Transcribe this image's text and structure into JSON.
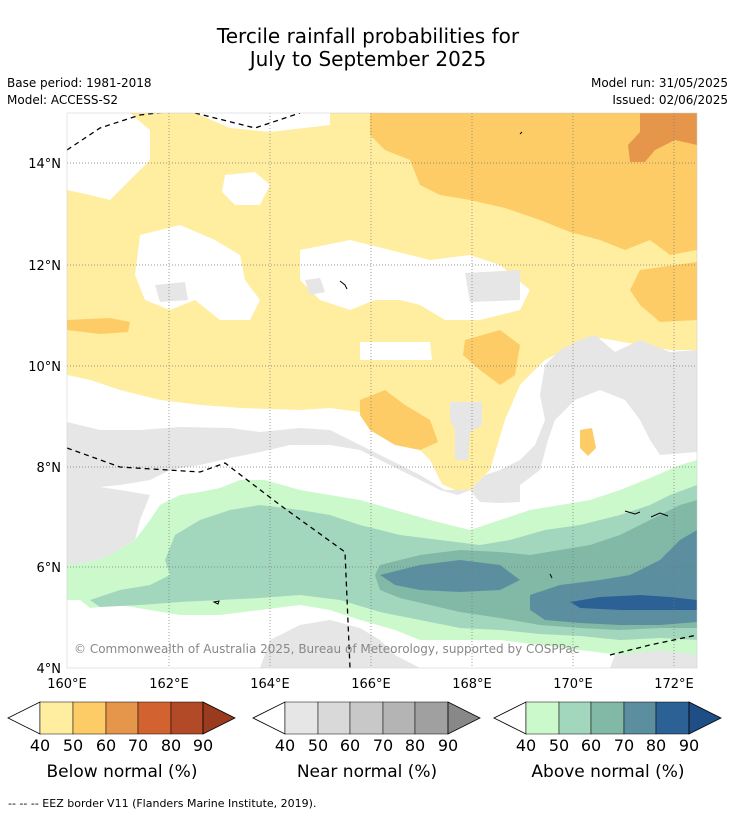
{
  "title_line1": "Tercile rainfall probabilities for",
  "title_line2": "July to September 2025",
  "base_period": "Base period: 1981-2018",
  "model": "Model: ACCESS-S2",
  "model_run": "Model run: 31/05/2025",
  "issued": "Issued: 02/06/2025",
  "copyright": "© Commonwealth of Australia 2025, Bureau of Meteorology, supported by COSPPac",
  "lat_labels": [
    "14°N",
    "12°N",
    "10°N",
    "8°N",
    "6°N",
    "4°N"
  ],
  "lon_labels": [
    "160°E",
    "162°E",
    "164°E",
    "166°E",
    "168°E",
    "170°E",
    "172°E"
  ],
  "colorbars": [
    {
      "label": "Below normal (%)",
      "ticks": [
        "40",
        "50",
        "60",
        "70",
        "80",
        "90"
      ],
      "colors": [
        "#ffeda0",
        "#fdcc66",
        "#e5964a",
        "#d2622f",
        "#b34a27",
        "#9a3b20"
      ]
    },
    {
      "label": "Near normal (%)",
      "ticks": [
        "40",
        "50",
        "60",
        "70",
        "80",
        "90"
      ],
      "colors": [
        "#e6e6e6",
        "#d9d9d9",
        "#c8c8c8",
        "#b4b4b4",
        "#a0a0a0",
        "#888888"
      ]
    },
    {
      "label": "Above normal (%)",
      "ticks": [
        "40",
        "50",
        "60",
        "70",
        "80",
        "90"
      ],
      "colors": [
        "#ccf9cc",
        "#a2d6bd",
        "#82b8a6",
        "#5b8fa0",
        "#2c6196",
        "#1f4e86"
      ]
    }
  ],
  "footer": "--  --  -- EEZ border V11 (Flanders Marine Institute, 2019)."
}
